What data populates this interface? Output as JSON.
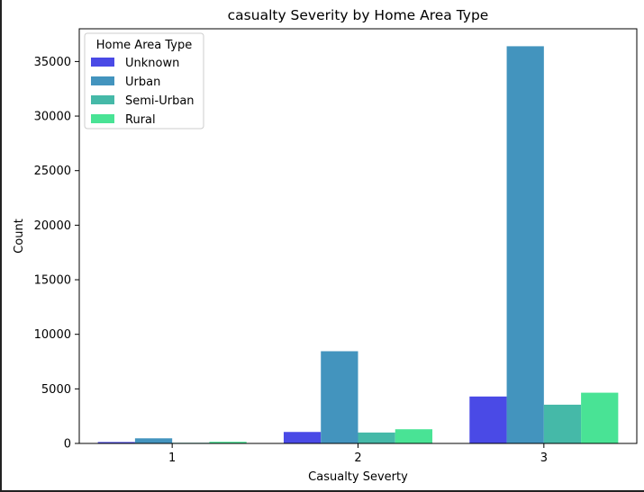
{
  "chart_data": {
    "type": "bar",
    "title": "casualty Severity by Home Area Type",
    "xlabel": "Casualty Severty",
    "ylabel": "Count",
    "categories": [
      "1",
      "2",
      "3"
    ],
    "ylim": [
      0,
      38000
    ],
    "yticks": [
      0,
      5000,
      10000,
      15000,
      20000,
      25000,
      30000,
      35000
    ],
    "grid": false,
    "legend": {
      "title": "Home Area Type",
      "position": "top-left"
    },
    "series": [
      {
        "name": "Unknown",
        "color": "#4a4ae6",
        "values": [
          130,
          1050,
          4300
        ]
      },
      {
        "name": "Urban",
        "color": "#4394be",
        "values": [
          470,
          8450,
          36400
        ]
      },
      {
        "name": "Semi-Urban",
        "color": "#45b9a8",
        "values": [
          60,
          1000,
          3550
        ]
      },
      {
        "name": "Rural",
        "color": "#49e395",
        "values": [
          150,
          1300,
          4650
        ]
      }
    ]
  }
}
